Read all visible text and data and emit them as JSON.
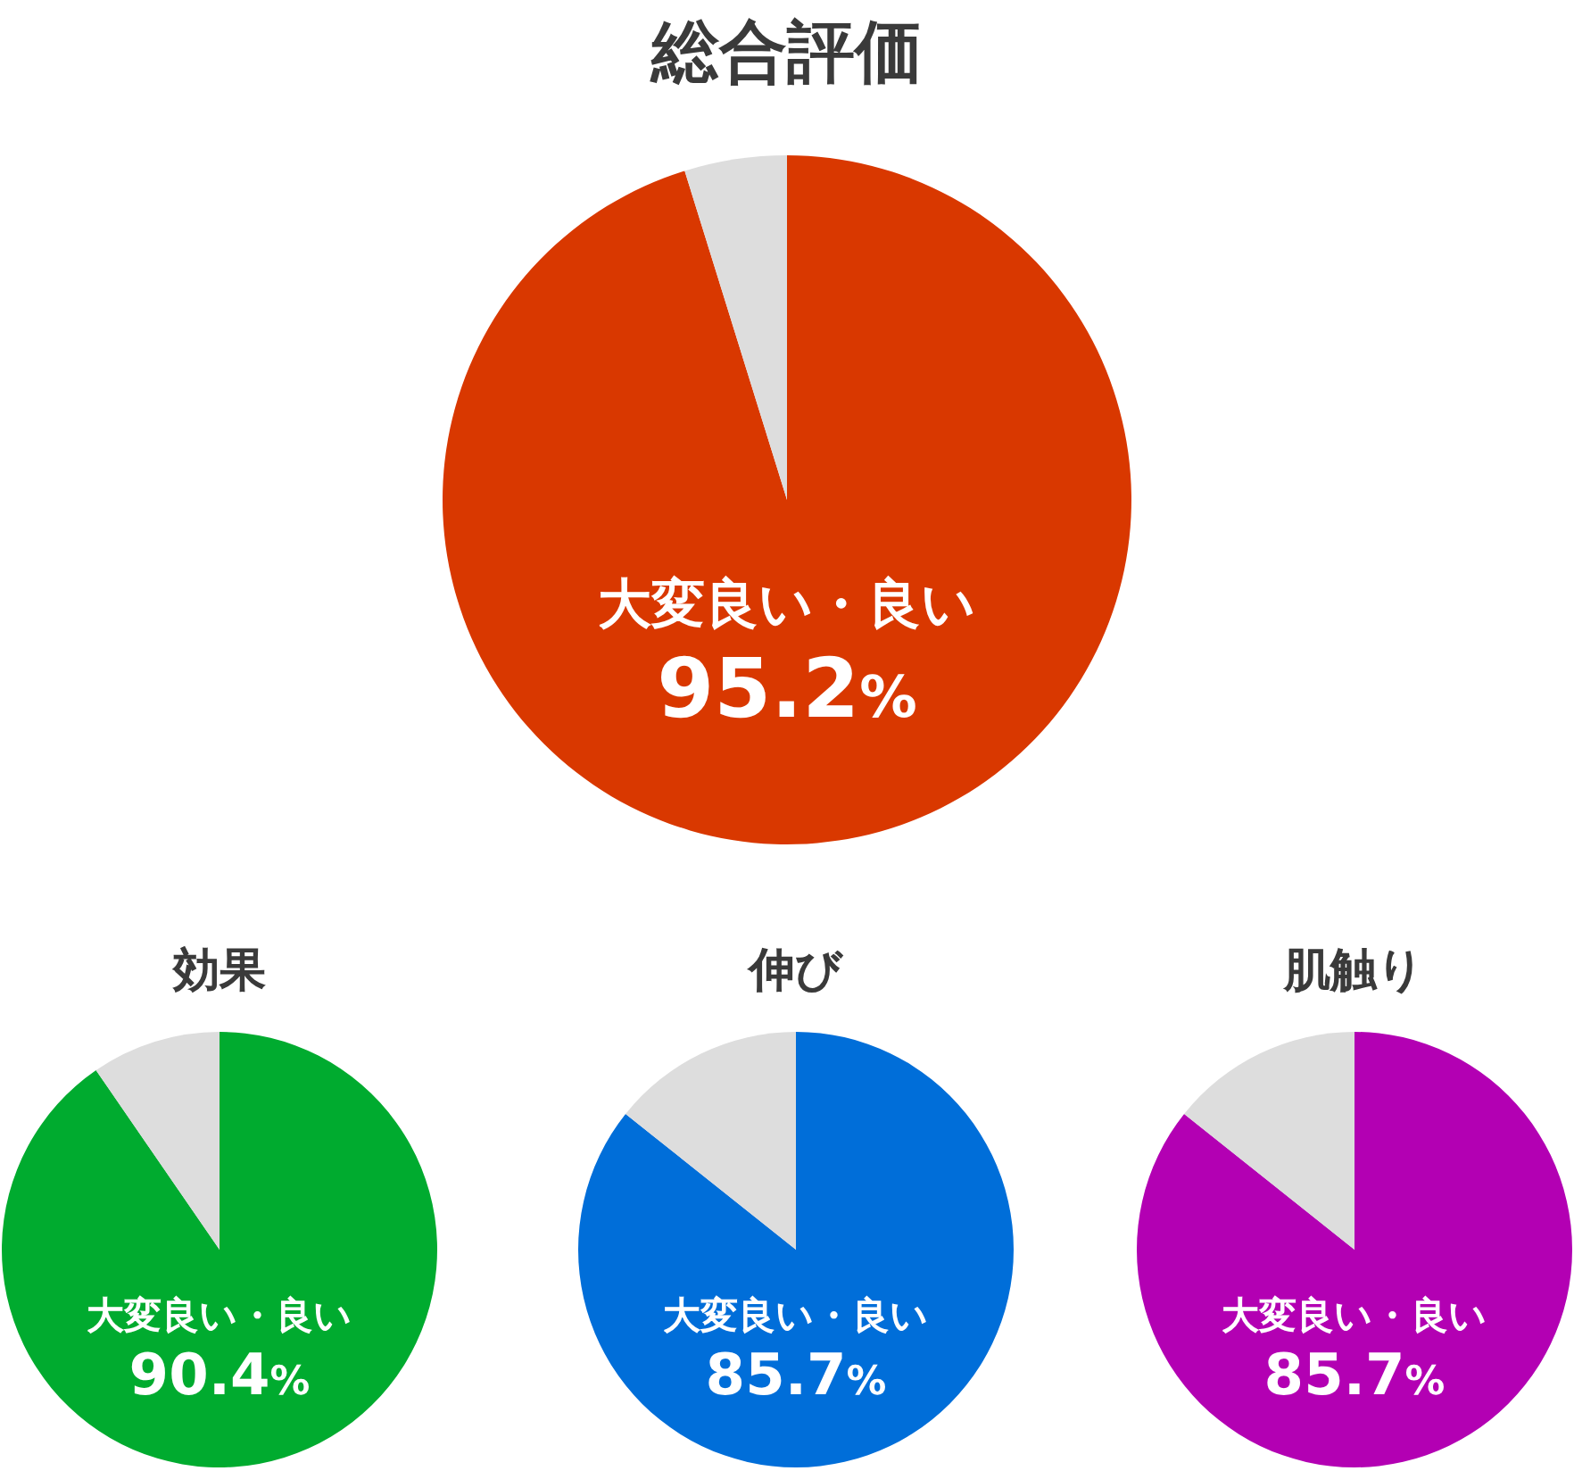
{
  "chart_data": [
    {
      "type": "pie",
      "title": "総合評価",
      "categories": [
        "大変良い・良い",
        null
      ],
      "values": [
        95.2,
        4.8
      ],
      "colors": [
        "#d93800",
        "#dddddd"
      ],
      "value_labels": [
        "95.2%",
        null
      ]
    },
    {
      "type": "pie",
      "title": "効果",
      "categories": [
        "大変良い・良い",
        null
      ],
      "values": [
        90.4,
        9.6
      ],
      "colors": [
        "#00ab2f",
        "#dddddd"
      ],
      "value_labels": [
        "90.4%",
        null
      ]
    },
    {
      "type": "pie",
      "title": "伸び",
      "categories": [
        "大変良い・良い",
        null
      ],
      "values": [
        85.7,
        14.3
      ],
      "colors": [
        "#006ed9",
        "#dddddd"
      ],
      "value_labels": [
        "85.7%",
        null
      ]
    },
    {
      "type": "pie",
      "title": "肌触り",
      "categories": [
        "大変良い・良い",
        null
      ],
      "values": [
        85.7,
        14.3
      ],
      "colors": [
        "#b300b3",
        "#dddddd"
      ],
      "value_labels": [
        "85.7%",
        null
      ]
    }
  ]
}
